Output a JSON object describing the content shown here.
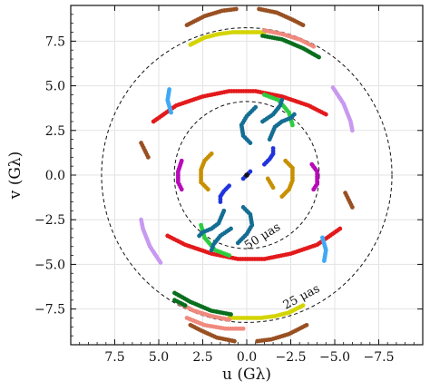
{
  "chart_data": {
    "type": "scatter",
    "xlabel": "u (Gλ)",
    "ylabel": "v (Gλ)",
    "xlim": [
      10,
      -10
    ],
    "ylim": [
      -9.5,
      9.5
    ],
    "x_ticks": [
      7.5,
      5.0,
      2.5,
      0.0,
      -2.5,
      -5.0,
      -7.5
    ],
    "x_tick_labels": [
      "7.5",
      "5.0",
      "2.5",
      "0.0",
      "−2.5",
      "−5.0",
      "−7.5"
    ],
    "y_ticks": [
      7.5,
      5.0,
      2.5,
      0.0,
      -2.5,
      -5.0,
      -7.5
    ],
    "y_tick_labels": [
      "7.5",
      "5.0",
      "2.5",
      "0.0",
      "−2.5",
      "−5.0",
      "−7.5"
    ],
    "grid": true,
    "annotations": [
      {
        "text": "50 μas",
        "x": -1.0,
        "y": -3.6,
        "rotation": 32
      },
      {
        "text": "25 μas",
        "x": -3.2,
        "y": -7.0,
        "rotation": 28
      }
    ],
    "circles": [
      {
        "radius": 4.12,
        "style": "dashed"
      },
      {
        "radius": 8.25,
        "style": "dashed"
      }
    ],
    "tracks": [
      {
        "color": "#e31a1c",
        "points": [
          [
            5.3,
            3.0
          ],
          [
            4.0,
            3.9
          ],
          [
            2.5,
            4.4
          ],
          [
            1.0,
            4.7
          ],
          [
            -0.5,
            4.7
          ],
          [
            -2.0,
            4.4
          ],
          [
            -3.5,
            3.9
          ],
          [
            -4.5,
            3.4
          ]
        ]
      },
      {
        "color": "#e31a1c",
        "points": [
          [
            4.5,
            -3.4
          ],
          [
            3.5,
            -3.9
          ],
          [
            2.0,
            -4.4
          ],
          [
            0.5,
            -4.7
          ],
          [
            -1.0,
            -4.7
          ],
          [
            -2.5,
            -4.4
          ],
          [
            -4.0,
            -3.9
          ],
          [
            -5.3,
            -3.0
          ]
        ]
      },
      {
        "color": "#2ecc40",
        "points": [
          [
            -1.0,
            4.5
          ],
          [
            -1.8,
            4.2
          ],
          [
            -2.4,
            3.5
          ],
          [
            -2.6,
            2.8
          ]
        ]
      },
      {
        "color": "#2ecc40",
        "points": [
          [
            1.0,
            -4.5
          ],
          [
            1.8,
            -4.2
          ],
          [
            2.4,
            -3.5
          ],
          [
            2.6,
            -2.8
          ]
        ]
      },
      {
        "color": "#156e94",
        "points": [
          [
            -0.2,
            1.8
          ],
          [
            0.2,
            2.2
          ],
          [
            0.3,
            2.8
          ],
          [
            0.0,
            3.3
          ],
          [
            -0.5,
            3.8
          ]
        ]
      },
      {
        "color": "#156e94",
        "points": [
          [
            -0.9,
            3.0
          ],
          [
            -1.5,
            3.4
          ],
          [
            -1.9,
            3.9
          ],
          [
            -2.0,
            4.2
          ]
        ]
      },
      {
        "color": "#156e94",
        "points": [
          [
            -1.3,
            2.0
          ],
          [
            -1.6,
            2.7
          ],
          [
            -2.0,
            3.0
          ],
          [
            -2.5,
            3.2
          ],
          [
            -2.7,
            3.4
          ]
        ]
      },
      {
        "color": "#156e94",
        "points": [
          [
            0.2,
            -1.8
          ],
          [
            -0.2,
            -2.2
          ],
          [
            -0.3,
            -2.8
          ],
          [
            0.0,
            -3.3
          ],
          [
            0.5,
            -3.8
          ]
        ]
      },
      {
        "color": "#156e94",
        "points": [
          [
            0.9,
            -3.0
          ],
          [
            1.5,
            -3.4
          ],
          [
            1.9,
            -3.9
          ],
          [
            2.0,
            -4.2
          ]
        ]
      },
      {
        "color": "#156e94",
        "points": [
          [
            1.3,
            -2.0
          ],
          [
            1.6,
            -2.7
          ],
          [
            2.0,
            -3.0
          ],
          [
            2.5,
            -3.2
          ],
          [
            2.7,
            -3.4
          ]
        ]
      },
      {
        "color": "#2133dd",
        "points": [
          [
            -1.0,
            0.6
          ],
          [
            -1.3,
            0.9
          ],
          [
            -1.5,
            1.2
          ],
          [
            -1.5,
            1.5
          ]
        ]
      },
      {
        "color": "#2133dd",
        "points": [
          [
            1.0,
            -0.6
          ],
          [
            1.3,
            -0.9
          ],
          [
            1.5,
            -1.2
          ],
          [
            1.5,
            -1.5
          ]
        ]
      },
      {
        "color": "#2133dd",
        "points": [
          [
            0.2,
            -0.2
          ],
          [
            -0.2,
            0.2
          ]
        ]
      },
      {
        "color": "#c89000",
        "points": [
          [
            2.0,
            1.2
          ],
          [
            2.4,
            0.8
          ],
          [
            2.6,
            0.3
          ],
          [
            2.6,
            -0.4
          ],
          [
            2.2,
            -0.8
          ]
        ]
      },
      {
        "color": "#c89000",
        "points": [
          [
            -2.0,
            -1.2
          ],
          [
            -2.4,
            -0.8
          ],
          [
            -2.6,
            -0.3
          ],
          [
            -2.6,
            0.4
          ],
          [
            -2.2,
            0.8
          ]
        ]
      },
      {
        "color": "#c89000",
        "points": [
          [
            -1.5,
            -0.7
          ],
          [
            -1.2,
            -0.2
          ]
        ]
      },
      {
        "color": "#b80ab8",
        "points": [
          [
            3.7,
            0.8
          ],
          [
            3.9,
            0.2
          ],
          [
            3.9,
            -0.4
          ],
          [
            3.7,
            -0.8
          ]
        ]
      },
      {
        "color": "#b80ab8",
        "points": [
          [
            -3.7,
            0.6
          ],
          [
            -4.0,
            0.2
          ],
          [
            -4.0,
            -0.5
          ],
          [
            -3.8,
            -0.8
          ]
        ]
      },
      {
        "color": "#3fa9f5",
        "points": [
          [
            4.3,
            3.5
          ],
          [
            4.5,
            4.2
          ],
          [
            4.4,
            4.8
          ]
        ]
      },
      {
        "color": "#3fa9f5",
        "points": [
          [
            -4.3,
            -3.5
          ],
          [
            -4.5,
            -4.2
          ],
          [
            -4.4,
            -4.8
          ]
        ]
      },
      {
        "color": "#c899f0",
        "points": [
          [
            -4.9,
            4.9
          ],
          [
            -5.5,
            4.0
          ],
          [
            -5.9,
            3.0
          ],
          [
            -6.0,
            2.5
          ]
        ]
      },
      {
        "color": "#c899f0",
        "points": [
          [
            4.9,
            -4.9
          ],
          [
            5.5,
            -4.0
          ],
          [
            5.9,
            -3.0
          ],
          [
            6.0,
            -2.5
          ]
        ]
      },
      {
        "color": "#995022",
        "points": [
          [
            6.0,
            1.8
          ],
          [
            5.8,
            1.4
          ],
          [
            5.6,
            1.0
          ]
        ]
      },
      {
        "color": "#995022",
        "points": [
          [
            -6.0,
            -1.8
          ],
          [
            -5.8,
            -1.4
          ],
          [
            -5.6,
            -1.0
          ]
        ]
      },
      {
        "color": "#995022",
        "points": [
          [
            3.4,
            8.4
          ],
          [
            2.4,
            8.9
          ],
          [
            1.4,
            9.2
          ],
          [
            0.6,
            9.3
          ]
        ]
      },
      {
        "color": "#995022",
        "points": [
          [
            -0.7,
            9.3
          ],
          [
            -1.7,
            9.1
          ],
          [
            -2.6,
            8.7
          ],
          [
            -3.2,
            8.4
          ]
        ]
      },
      {
        "color": "#995022",
        "points": [
          [
            -3.4,
            -8.4
          ],
          [
            -2.4,
            -8.9
          ],
          [
            -1.4,
            -9.2
          ],
          [
            -0.6,
            -9.3
          ]
        ]
      },
      {
        "color": "#995022",
        "points": [
          [
            0.7,
            -9.3
          ],
          [
            1.7,
            -9.1
          ],
          [
            2.6,
            -8.7
          ],
          [
            3.2,
            -8.4
          ]
        ]
      },
      {
        "color": "#d4d400",
        "points": [
          [
            3.2,
            7.3
          ],
          [
            2.4,
            7.7
          ],
          [
            1.6,
            7.9
          ],
          [
            0.8,
            8.0
          ],
          [
            0.0,
            8.0
          ],
          [
            -1.0,
            8.0
          ]
        ]
      },
      {
        "color": "#d4d400",
        "points": [
          [
            -3.2,
            -7.3
          ],
          [
            -2.4,
            -7.7
          ],
          [
            -1.6,
            -7.9
          ],
          [
            -0.8,
            -8.0
          ],
          [
            0.0,
            -8.0
          ],
          [
            1.0,
            -8.0
          ]
        ]
      },
      {
        "color": "#f08a7e",
        "points": [
          [
            -1.0,
            8.1
          ],
          [
            -2.0,
            7.9
          ],
          [
            -3.0,
            7.6
          ],
          [
            -3.8,
            7.2
          ]
        ]
      },
      {
        "color": "#f08a7e",
        "points": [
          [
            1.0,
            -8.1
          ],
          [
            2.0,
            -7.9
          ],
          [
            3.0,
            -7.6
          ],
          [
            3.8,
            -7.2
          ]
        ]
      },
      {
        "color": "#f08a7e",
        "points": [
          [
            3.4,
            -8.0
          ],
          [
            2.4,
            -8.4
          ],
          [
            1.2,
            -8.6
          ],
          [
            0.2,
            -8.6
          ]
        ]
      },
      {
        "color": "#0a6e1e",
        "points": [
          [
            -0.9,
            7.8
          ],
          [
            -2.0,
            7.6
          ],
          [
            -3.2,
            7.1
          ],
          [
            -4.1,
            6.6
          ]
        ]
      },
      {
        "color": "#0a6e1e",
        "points": [
          [
            4.1,
            -6.6
          ],
          [
            3.2,
            -7.1
          ],
          [
            2.0,
            -7.6
          ],
          [
            0.9,
            -7.8
          ]
        ]
      },
      {
        "color": "#0a6e1e",
        "points": [
          [
            4.1,
            -7.0
          ],
          [
            3.5,
            -7.3
          ]
        ]
      },
      {
        "color": "#111111",
        "points": [
          [
            0.0,
            0.0
          ]
        ]
      }
    ]
  }
}
